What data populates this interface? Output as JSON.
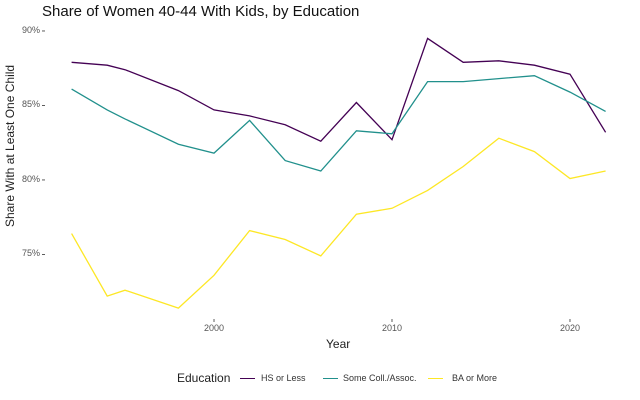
{
  "chart_data": {
    "type": "line",
    "title": "Share of Women 40-44 With Kids, by Education",
    "xlabel": "Year",
    "ylabel": "Share With at Least One Child",
    "xlim": [
      1990.6,
      2023.4
    ],
    "ylim": [
      70.8,
      90.2
    ],
    "xticks": [
      2000,
      2010,
      2020
    ],
    "xtick_labels": [
      "2000",
      "2010",
      "2020"
    ],
    "yticks": [
      90,
      85,
      80,
      75
    ],
    "ytick_labels": [
      "90%",
      "85%",
      "80%",
      "75%"
    ],
    "grid": false,
    "legend": {
      "title": "Education",
      "position": "bottom"
    },
    "x": [
      1992,
      1994,
      1995,
      1998,
      2000,
      2002,
      2004,
      2006,
      2008,
      2010,
      2012,
      2014,
      2016,
      2018,
      2020,
      2022
    ],
    "series": [
      {
        "name": "HS or Less",
        "color": "#440154",
        "values": [
          87.9,
          87.7,
          87.4,
          86.0,
          84.7,
          84.3,
          83.7,
          82.6,
          85.2,
          82.7,
          89.5,
          87.9,
          88.0,
          87.7,
          87.1,
          83.2
        ]
      },
      {
        "name": "Some Coll./Assoc.",
        "color": "#21908C",
        "values": [
          86.1,
          84.7,
          84.1,
          82.4,
          81.8,
          84.0,
          81.3,
          80.6,
          83.3,
          83.1,
          86.6,
          86.6,
          86.8,
          87.0,
          85.9,
          84.6
        ]
      },
      {
        "name": "BA or More",
        "color": "#FDE725",
        "values": [
          76.4,
          72.2,
          72.6,
          71.4,
          73.6,
          76.6,
          76.0,
          74.9,
          77.7,
          78.1,
          79.3,
          80.9,
          82.8,
          81.9,
          80.1,
          80.6
        ]
      }
    ]
  }
}
